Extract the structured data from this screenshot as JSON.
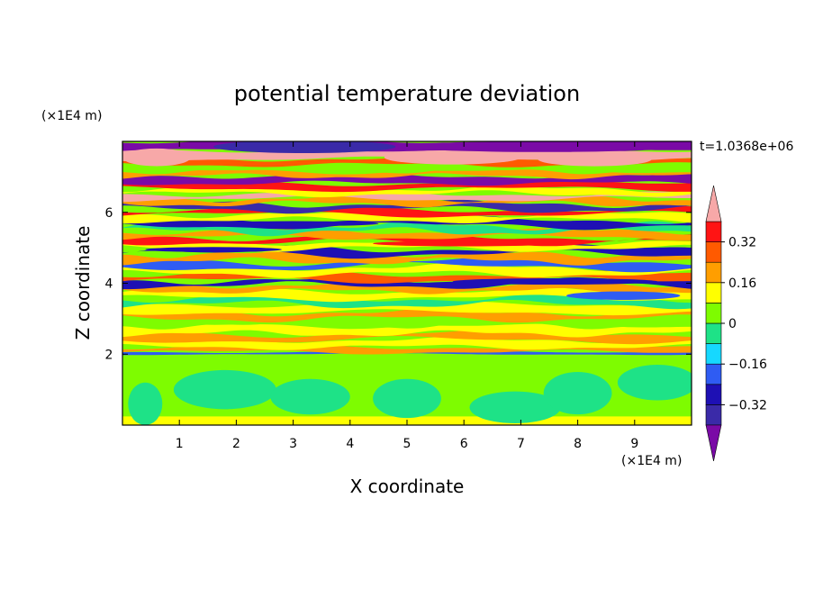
{
  "chart_data": {
    "type": "heatmap",
    "title": "potential temperature deviation",
    "xlabel": "X coordinate",
    "ylabel": "Z coordinate",
    "x_unit": "(×1E4 m)",
    "y_unit": "(×1E4 m)",
    "time_label": "t=1.0368e+06",
    "xlim": [
      0,
      10
    ],
    "ylim": [
      0,
      8
    ],
    "x_ticks": [
      1,
      2,
      3,
      4,
      5,
      6,
      7,
      8,
      9
    ],
    "y_ticks": [
      2,
      4,
      6
    ],
    "x_tick_labels": [
      "1",
      "2",
      "3",
      "4",
      "5",
      "6",
      "7",
      "8",
      "9"
    ],
    "y_tick_labels": [
      "2",
      "4",
      "6"
    ],
    "colorbar": {
      "levels": [
        -0.4,
        -0.32,
        -0.24,
        -0.16,
        -0.08,
        0,
        0.08,
        0.16,
        0.24,
        0.32,
        0.4
      ],
      "labels": [
        "0.32",
        "0.16",
        "0",
        "−0.16",
        "−0.32"
      ],
      "label_values": [
        0.32,
        0.16,
        0,
        -0.16,
        -0.32
      ],
      "colors": [
        "#7a0aa6",
        "#3a2aa8",
        "#1e10b4",
        "#2f5cf3",
        "#16d8ff",
        "#1ee287",
        "#7efc00",
        "#ffff00",
        "#ff9e00",
        "#ff5a00",
        "#ff1414",
        "#f7a8a8"
      ],
      "extend": "both"
    },
    "bands": [
      {
        "z": 0.0,
        "h": 0.25,
        "c": 7,
        "amp": 0.0,
        "wl": 10
      },
      {
        "z": 0.25,
        "h": 1.75,
        "c": 6,
        "amp": 0.0,
        "wl": 10
      },
      {
        "z": 2.0,
        "h": 0.06,
        "c": 3,
        "amp": 0.02,
        "wl": 8
      },
      {
        "z": 2.06,
        "h": 0.14,
        "c": 8,
        "amp": 0.05,
        "wl": 6
      },
      {
        "z": 2.2,
        "h": 0.2,
        "c": 7,
        "amp": 0.06,
        "wl": 5
      },
      {
        "z": 2.4,
        "h": 0.18,
        "c": 8,
        "amp": 0.08,
        "wl": 7
      },
      {
        "z": 2.58,
        "h": 0.22,
        "c": 7,
        "amp": 0.07,
        "wl": 4
      },
      {
        "z": 2.8,
        "h": 0.2,
        "c": 6,
        "amp": 0.06,
        "wl": 6
      },
      {
        "z": 3.0,
        "h": 0.18,
        "c": 8,
        "amp": 0.08,
        "wl": 5
      },
      {
        "z": 3.18,
        "h": 0.22,
        "c": 7,
        "amp": 0.06,
        "wl": 7
      },
      {
        "z": 3.4,
        "h": 0.18,
        "c": 5,
        "amp": 0.09,
        "wl": 5
      },
      {
        "z": 3.58,
        "h": 0.2,
        "c": 7,
        "amp": 0.07,
        "wl": 6
      },
      {
        "z": 3.78,
        "h": 0.16,
        "c": 8,
        "amp": 0.06,
        "wl": 4
      },
      {
        "z": 3.94,
        "h": 0.14,
        "c": 2,
        "amp": 0.08,
        "wl": 5
      },
      {
        "z": 4.08,
        "h": 0.18,
        "c": 9,
        "amp": 0.07,
        "wl": 6
      },
      {
        "z": 4.26,
        "h": 0.2,
        "c": 7,
        "amp": 0.08,
        "wl": 5
      },
      {
        "z": 4.46,
        "h": 0.16,
        "c": 3,
        "amp": 0.1,
        "wl": 7
      },
      {
        "z": 4.62,
        "h": 0.2,
        "c": 8,
        "amp": 0.08,
        "wl": 4
      },
      {
        "z": 4.82,
        "h": 0.16,
        "c": 2,
        "amp": 0.09,
        "wl": 6
      },
      {
        "z": 4.98,
        "h": 0.18,
        "c": 7,
        "amp": 0.07,
        "wl": 5
      },
      {
        "z": 5.16,
        "h": 0.14,
        "c": 10,
        "amp": 0.08,
        "wl": 6
      },
      {
        "z": 5.3,
        "h": 0.16,
        "c": 8,
        "amp": 0.07,
        "wl": 5
      },
      {
        "z": 5.46,
        "h": 0.16,
        "c": 5,
        "amp": 0.09,
        "wl": 4
      },
      {
        "z": 5.62,
        "h": 0.16,
        "c": 2,
        "amp": 0.08,
        "wl": 6
      },
      {
        "z": 5.78,
        "h": 0.16,
        "c": 7,
        "amp": 0.07,
        "wl": 5
      },
      {
        "z": 5.94,
        "h": 0.14,
        "c": 10,
        "amp": 0.07,
        "wl": 7
      },
      {
        "z": 6.08,
        "h": 0.16,
        "c": 1,
        "amp": 0.08,
        "wl": 5
      },
      {
        "z": 6.24,
        "h": 0.14,
        "c": 8,
        "amp": 0.07,
        "wl": 4
      },
      {
        "z": 6.38,
        "h": 0.14,
        "c": 11,
        "amp": 0.06,
        "wl": 6
      },
      {
        "z": 6.52,
        "h": 0.14,
        "c": 7,
        "amp": 0.07,
        "wl": 5
      },
      {
        "z": 6.66,
        "h": 0.16,
        "c": 10,
        "amp": 0.06,
        "wl": 7
      },
      {
        "z": 6.82,
        "h": 0.2,
        "c": 0,
        "amp": 0.05,
        "wl": 5
      },
      {
        "z": 7.02,
        "h": 0.14,
        "c": 8,
        "amp": 0.06,
        "wl": 4
      },
      {
        "z": 7.16,
        "h": 0.18,
        "c": 6,
        "amp": 0.06,
        "wl": 6
      },
      {
        "z": 7.34,
        "h": 0.16,
        "c": 9,
        "amp": 0.05,
        "wl": 5
      },
      {
        "z": 7.5,
        "h": 0.26,
        "c": 11,
        "amp": 0.05,
        "wl": 7
      },
      {
        "z": 7.76,
        "h": 0.24,
        "c": 0,
        "amp": 0.04,
        "wl": 6
      }
    ],
    "blobs": [
      {
        "x": 1.8,
        "z": 1.0,
        "rx": 0.9,
        "rz": 0.55,
        "c": 5
      },
      {
        "x": 3.3,
        "z": 0.8,
        "rx": 0.7,
        "rz": 0.5,
        "c": 5
      },
      {
        "x": 5.0,
        "z": 0.75,
        "rx": 0.6,
        "rz": 0.55,
        "c": 5
      },
      {
        "x": 6.9,
        "z": 0.5,
        "rx": 0.8,
        "rz": 0.45,
        "c": 5
      },
      {
        "x": 8.0,
        "z": 0.9,
        "rx": 0.6,
        "rz": 0.6,
        "c": 5
      },
      {
        "x": 9.4,
        "z": 1.2,
        "rx": 0.7,
        "rz": 0.5,
        "c": 5
      },
      {
        "x": 0.4,
        "z": 0.6,
        "rx": 0.3,
        "rz": 0.6,
        "c": 5
      }
    ],
    "patches": [
      {
        "x": 0.6,
        "z": 7.55,
        "rx": 0.6,
        "rz": 0.25,
        "c": 11
      },
      {
        "x": 3.2,
        "z": 7.85,
        "rx": 1.6,
        "rz": 0.18,
        "c": 1
      },
      {
        "x": 5.8,
        "z": 7.55,
        "rx": 1.2,
        "rz": 0.2,
        "c": 11
      },
      {
        "x": 8.3,
        "z": 7.5,
        "rx": 1.0,
        "rz": 0.2,
        "c": 11
      },
      {
        "x": 7.4,
        "z": 7.85,
        "rx": 2.4,
        "rz": 0.15,
        "c": 0
      },
      {
        "x": 6.0,
        "z": 5.12,
        "rx": 1.6,
        "rz": 0.08,
        "c": 10
      },
      {
        "x": 3.0,
        "z": 5.68,
        "rx": 1.5,
        "rz": 0.07,
        "c": 2
      },
      {
        "x": 7.6,
        "z": 4.05,
        "rx": 1.8,
        "rz": 0.09,
        "c": 2
      },
      {
        "x": 1.6,
        "z": 4.95,
        "rx": 1.2,
        "rz": 0.07,
        "c": 2
      },
      {
        "x": 8.8,
        "z": 3.65,
        "rx": 1.0,
        "rz": 0.12,
        "c": 3
      }
    ]
  }
}
